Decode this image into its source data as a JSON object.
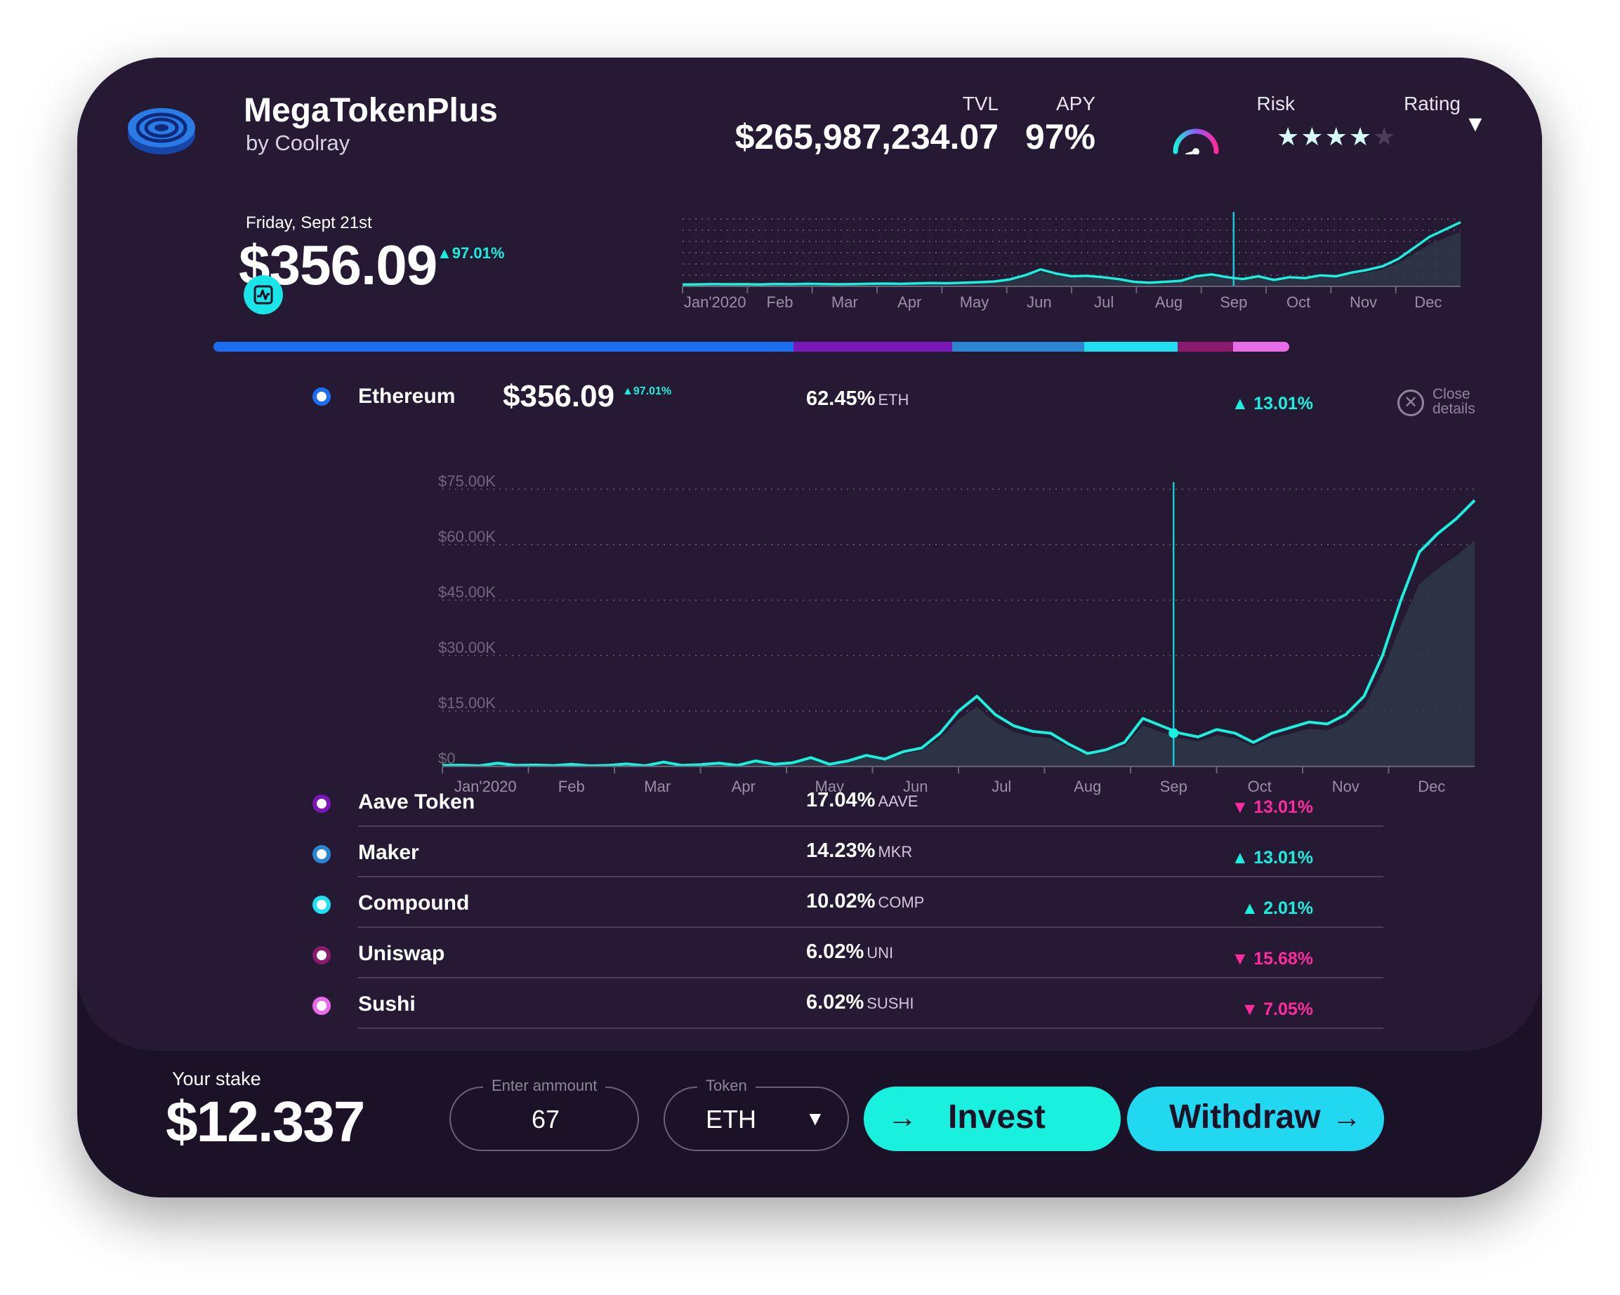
{
  "header": {
    "app_name": "MegaTokenPlus",
    "byline": "by Coolray",
    "tvl_label": "TVL",
    "tvl_value": "$265,987,234.07",
    "apy_label": "APY",
    "apy_value": "97%",
    "risk_label": "Risk",
    "rating_label": "Rating",
    "rating_stars": 4,
    "rating_max": 5,
    "icons": {
      "logo": "coin-logo-icon",
      "risk": "risk-gauge-icon",
      "dropdown": "dropdown-arrow-icon"
    }
  },
  "summary": {
    "date": "Friday, Sept 21st",
    "price": "$356.09",
    "change": "97.01%"
  },
  "allocation": [
    {
      "token": "Ethereum",
      "share": 62.45,
      "color": "#1b6ef0"
    },
    {
      "token": "Aave Token",
      "share": 17.04,
      "color": "#7b16b8"
    },
    {
      "token": "Maker",
      "share": 14.23,
      "color": "#2a86d0"
    },
    {
      "token": "Compound",
      "share": 10.02,
      "color": "#1ee0f0"
    },
    {
      "token": "Uniswap",
      "share": 6.02,
      "color": "#8a1a6e"
    },
    {
      "token": "Sushi",
      "share": 6.02,
      "color": "#e86be8"
    }
  ],
  "selected_token": {
    "name": "Ethereum",
    "price": "$356.09",
    "price_change": "97.01%",
    "share": "62.45%",
    "symbol": "ETH",
    "change": "13.01%",
    "close_label_1": "Close",
    "close_label_2": "details"
  },
  "tokens": [
    {
      "name": "Aave Token",
      "share": "17.04%",
      "symbol": "AAVE",
      "change": "13.01%",
      "direction": "down",
      "ring_color": "#7b16b8"
    },
    {
      "name": "Maker",
      "share": "14.23%",
      "symbol": "MKR",
      "change": "13.01%",
      "direction": "up",
      "ring_color": "#2a86d0"
    },
    {
      "name": "Compound",
      "share": "10.02%",
      "symbol": "COMP",
      "change": "2.01%",
      "direction": "up",
      "ring_color": "#1ee0f0"
    },
    {
      "name": "Uniswap",
      "share": "6.02%",
      "symbol": "UNI",
      "change": "15.68%",
      "direction": "down",
      "ring_color": "#8a1a6e"
    },
    {
      "name": "Sushi",
      "share": "6.02%",
      "symbol": "SUSHI",
      "change": "7.05%",
      "direction": "down",
      "ring_color": "#e86be8"
    }
  ],
  "chart_data": [
    {
      "type": "line",
      "x_ticks": [
        "Jan'2020",
        "Feb",
        "Mar",
        "Apr",
        "May",
        "Jun",
        "Jul",
        "Aug",
        "Sep",
        "Oct",
        "Nov",
        "Dec"
      ],
      "series": [
        {
          "values": [
            2,
            2.2,
            2.5,
            2.3,
            2.4,
            2.1,
            2.6,
            2.4,
            2.8,
            2.6,
            2.3,
            2.5,
            2.9,
            3.1,
            2.8,
            3.3,
            3.6,
            3.4,
            3.9,
            4.5,
            5.3,
            7.5,
            12,
            18.5,
            14,
            11,
            11.5,
            10,
            8,
            5,
            4,
            5,
            6,
            11,
            13,
            10,
            8,
            11,
            7,
            10,
            9,
            12,
            11,
            15,
            18,
            22,
            30,
            42,
            54,
            62,
            70
          ]
        }
      ],
      "highlight_x": "Sep",
      "grid": true
    },
    {
      "type": "line",
      "x_ticks": [
        "Jan'2020",
        "Feb",
        "Mar",
        "Apr",
        "May",
        "Jun",
        "Jul",
        "Aug",
        "Sep",
        "Oct",
        "Nov",
        "Dec"
      ],
      "y_ticks": [
        "$75.00K",
        "$60.00K",
        "$45.00K",
        "$30.00K",
        "$15.00K",
        "$0"
      ],
      "ylim": [
        0,
        75000
      ],
      "series": [
        {
          "values": [
            300,
            350,
            200,
            900,
            300,
            400,
            250,
            600,
            200,
            300,
            700,
            200,
            1200,
            300,
            500,
            900,
            300,
            1500,
            600,
            1000,
            2400,
            600,
            1500,
            3000,
            2000,
            4000,
            5000,
            9000,
            15000,
            19000,
            14000,
            11000,
            9500,
            9000,
            6000,
            3500,
            4500,
            6500,
            13000,
            11000,
            9000,
            8000,
            10000,
            9000,
            6500,
            9000,
            10500,
            12000,
            11500,
            14000,
            19000,
            30000,
            45000,
            58000,
            63000,
            67000,
            72000
          ]
        }
      ],
      "highlight_x": "Sep",
      "grid": true
    }
  ],
  "stake": {
    "label": "Your stake",
    "value": "$12.337",
    "amount_label": "Enter ammount",
    "amount_value": "67",
    "token_label": "Token",
    "token_value": "ETH",
    "invest_label": "Invest",
    "withdraw_label": "Withdraw"
  }
}
